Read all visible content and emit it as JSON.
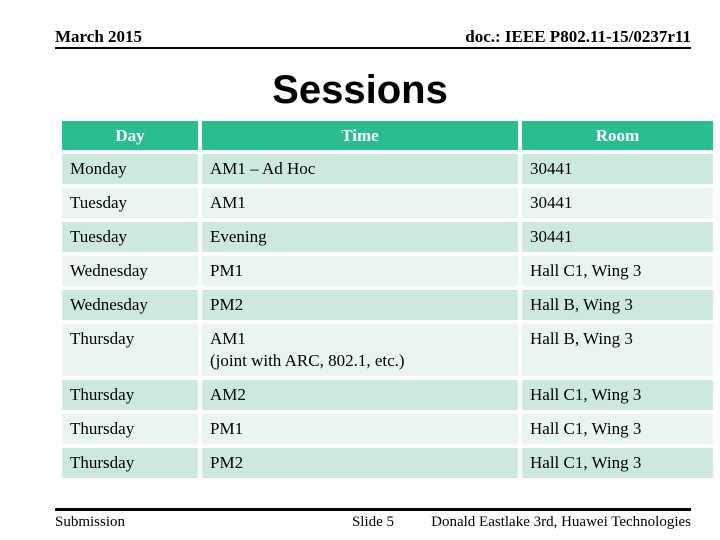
{
  "header": {
    "date": "March 2015",
    "doc_number": "doc.: IEEE P802.11-15/0237r11"
  },
  "title": "Sessions",
  "table": {
    "columns": [
      "Day",
      "Time",
      "Room"
    ],
    "rows": [
      {
        "day": "Monday",
        "time": "AM1 – Ad Hoc",
        "time2": "",
        "room": "30441"
      },
      {
        "day": "Tuesday",
        "time": "AM1",
        "time2": "",
        "room": "30441"
      },
      {
        "day": "Tuesday",
        "time": "Evening",
        "time2": "",
        "room": "30441"
      },
      {
        "day": "Wednesday",
        "time": "PM1",
        "time2": "",
        "room": "Hall C1, Wing 3"
      },
      {
        "day": "Wednesday",
        "time": "PM2",
        "time2": "",
        "room": "Hall B, Wing 3"
      },
      {
        "day": "Thursday",
        "time": "AM1",
        "time2": "(joint with ARC, 802.1, etc.)",
        "room": "Hall B, Wing 3"
      },
      {
        "day": "Thursday",
        "time": "AM2",
        "time2": "",
        "room": "Hall C1, Wing 3"
      },
      {
        "day": "Thursday",
        "time": "PM1",
        "time2": "",
        "room": "Hall C1, Wing 3"
      },
      {
        "day": "Thursday",
        "time": "PM2",
        "time2": "",
        "room": "Hall C1, Wing 3"
      }
    ]
  },
  "footer": {
    "left": "Submission",
    "center": "Slide 5",
    "right": "Donald Eastlake 3rd, Huawei Technologies"
  },
  "colors": {
    "title_color": "#000000",
    "text": "#000000",
    "table_header_bg": "#29BD8F",
    "table_header_text": "#FFFFFF",
    "row_dark": "#CDE9DD",
    "row_light": "#EAF5F0"
  }
}
